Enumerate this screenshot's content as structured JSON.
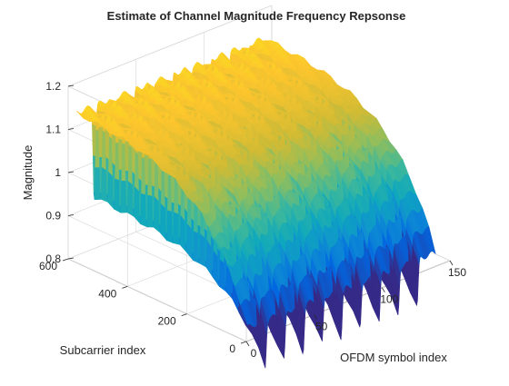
{
  "chart_data": {
    "type": "surface",
    "title": "Estimate of Channel Magnitude Frequency Repsonse",
    "xlabel": "OFDM symbol index",
    "ylabel": "Subcarrier index",
    "zlabel": "Magnitude",
    "xlim": [
      0,
      150
    ],
    "ylim": [
      0,
      600
    ],
    "zlim": [
      0.8,
      1.2
    ],
    "x_ticks": [
      "0",
      "50",
      "100",
      "150"
    ],
    "y_ticks": [
      "0",
      "200",
      "400",
      "600"
    ],
    "z_ticks": [
      "0.8",
      "0.9",
      "1",
      "1.1",
      "1.2"
    ],
    "grid": true,
    "colormap": "parula",
    "colormap_stops": [
      "#352a87",
      "#0268e1",
      "#108ed2",
      "#0fa8bd",
      "#3eb89c",
      "#8dbe5f",
      "#d1bb35",
      "#fcc52e",
      "#f9fb0e"
    ],
    "symbol_range": [
      1,
      140
    ],
    "subcarrier_range": [
      1,
      576
    ],
    "dips_at_symbol_index": [
      14,
      28,
      42,
      56,
      70,
      84,
      98,
      112,
      126
    ],
    "magnitude_edge_subcarrier_0": 0.83,
    "magnitude_plateau": 1.15,
    "magnitude_dip": 0.93
  }
}
